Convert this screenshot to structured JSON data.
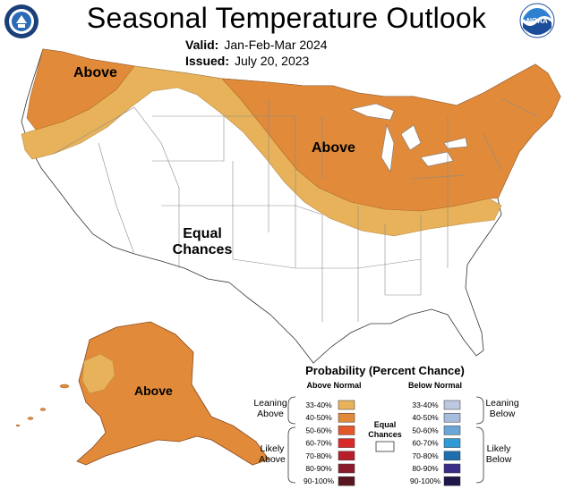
{
  "title": "Seasonal Temperature Outlook",
  "valid_label": "Valid:",
  "valid_value": "Jan-Feb-Mar 2024",
  "issued_label": "Issued:",
  "issued_value": "July 20, 2023",
  "map_labels": {
    "above_northwest": "Above",
    "above_east": "Above",
    "equal_line1": "Equal",
    "equal_line2": "Chances",
    "above_alaska": "Above"
  },
  "legend": {
    "title": "Probability (Percent Chance)",
    "above_header": "Above Normal",
    "below_header": "Below Normal",
    "leaning_above": [
      "Leaning",
      "Above"
    ],
    "likely_above": [
      "Likely",
      "Above"
    ],
    "leaning_below": [
      "Leaning",
      "Below"
    ],
    "likely_below": [
      "Likely",
      "Below"
    ],
    "equal_chances": [
      "Equal",
      "Chances"
    ],
    "above_bins": [
      {
        "label": "33-40%",
        "color": "#e8b25a"
      },
      {
        "label": "40-50%",
        "color": "#e08a3a"
      },
      {
        "label": "50-60%",
        "color": "#e3582a"
      },
      {
        "label": "60-70%",
        "color": "#d92a2a"
      },
      {
        "label": "70-80%",
        "color": "#b81d2a"
      },
      {
        "label": "80-90%",
        "color": "#8a1c2a"
      },
      {
        "label": "90-100%",
        "color": "#5a1620"
      }
    ],
    "below_bins": [
      {
        "label": "33-40%",
        "color": "#bcc8e0"
      },
      {
        "label": "40-50%",
        "color": "#a7bddc"
      },
      {
        "label": "50-60%",
        "color": "#6aa7d8"
      },
      {
        "label": "60-70%",
        "color": "#2f9ad6"
      },
      {
        "label": "70-80%",
        "color": "#1d6fb0"
      },
      {
        "label": "80-90%",
        "color": "#3a2d8a"
      },
      {
        "label": "90-100%",
        "color": "#1d1848"
      }
    ]
  },
  "colors": {
    "above_33_40": "#e8b25a",
    "above_40_50": "#e08a3a",
    "equal": "#ffffff"
  }
}
